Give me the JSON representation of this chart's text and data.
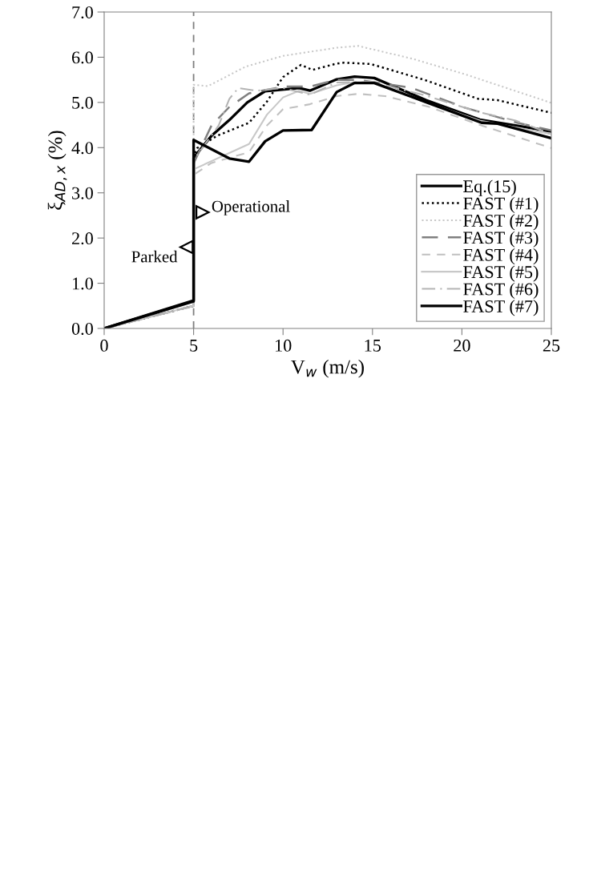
{
  "chart_data": {
    "type": "line",
    "xlabel": "V$_{w}$ (m/s)",
    "ylabel": "ξ$_{AD,x}$ (%)",
    "xlim": [
      0,
      25
    ],
    "xticks": [
      0,
      5,
      10,
      15,
      20,
      25
    ],
    "ylim": [
      0,
      7
    ],
    "yticks": [
      {
        "value": 0,
        "label": "0.0"
      },
      {
        "value": 1,
        "label": "1.0"
      },
      {
        "value": 2,
        "label": "2.0"
      },
      {
        "value": 3,
        "label": "3.0"
      },
      {
        "value": 4,
        "label": "4.0"
      },
      {
        "value": 5,
        "label": "5.0"
      },
      {
        "value": 6,
        "label": "6.0"
      },
      {
        "value": 7,
        "label": "7.0"
      }
    ],
    "grid": false,
    "legend": "bottom right",
    "marker": "none",
    "ref_lines": [
      {
        "axis": "x",
        "value": 5,
        "color": "#808080",
        "line_style": "dashed"
      }
    ],
    "annotations": [
      {
        "text": "Parked",
        "x": 4.6,
        "y": 1.8
      },
      {
        "text": "Operational",
        "x": 5.5,
        "y": 2.57
      }
    ],
    "series": [
      {
        "name": "Eq.(15)",
        "color": "#000000",
        "line_style": "solid",
        "x": [
          0,
          5,
          5,
          6,
          7,
          8,
          9,
          10.9,
          11.5,
          13,
          14,
          15.1,
          18,
          21,
          25
        ],
        "values": [
          0,
          0.62,
          3.78,
          4.26,
          4.61,
          5.0,
          5.25,
          5.32,
          5.26,
          5.51,
          5.57,
          5.54,
          5.05,
          4.62,
          4.36
        ]
      },
      {
        "name": "FAST (#1)",
        "color": "#000000",
        "line_style": "dotted",
        "x": [
          0,
          5,
          5,
          5.2,
          6.3,
          8.1,
          9.1,
          10,
          11,
          11.65,
          13,
          13.4,
          14.9,
          17.9,
          20.9,
          22,
          25
        ],
        "values": [
          0,
          0.5,
          3.8,
          3.99,
          4.26,
          4.55,
          5.02,
          5.56,
          5.83,
          5.72,
          5.86,
          5.88,
          5.85,
          5.5,
          5.08,
          5.05,
          4.77
        ]
      },
      {
        "name": "FAST (#2)",
        "color": "#c8c8c8",
        "line_style": "dotted",
        "x": [
          0,
          5,
          5,
          5.8,
          7.9,
          10,
          13,
          14.2,
          17.2,
          20.2,
          25
        ],
        "values": [
          0,
          0.5,
          5.39,
          5.36,
          5.79,
          6.03,
          6.21,
          6.25,
          5.97,
          5.62,
          4.99
        ]
      },
      {
        "name": "FAST (#3)",
        "color": "#808080",
        "line_style": "longdash",
        "x": [
          0,
          5,
          5,
          6,
          7,
          8.1,
          10,
          11.5,
          13,
          14.2,
          17.2,
          20.2,
          23.1,
          25
        ],
        "values": [
          0,
          0.5,
          3.65,
          4.49,
          4.9,
          5.2,
          5.35,
          5.35,
          5.5,
          5.5,
          5.32,
          4.88,
          4.55,
          4.38
        ]
      },
      {
        "name": "FAST (#4)",
        "color": "#c0c0c0",
        "line_style": "dashed",
        "x": [
          0,
          5,
          5,
          6,
          8.1,
          9.1,
          10,
          11.5,
          13,
          14.2,
          15.7,
          18.1,
          21.1,
          25
        ],
        "values": [
          0,
          0.5,
          3.4,
          3.66,
          3.9,
          4.49,
          4.85,
          4.96,
          5.14,
          5.19,
          5.14,
          4.91,
          4.49,
          3.99
        ]
      },
      {
        "name": "FAST (#5)",
        "color": "#c8c8c8",
        "line_style": "solid",
        "x": [
          0,
          5,
          5,
          8.1,
          9.1,
          10,
          10.9,
          11.5,
          13,
          14,
          15,
          18,
          21,
          25
        ],
        "values": [
          0,
          0.5,
          3.52,
          4.08,
          4.73,
          5.11,
          5.26,
          5.19,
          5.38,
          5.45,
          5.45,
          5.0,
          4.6,
          4.3
        ]
      },
      {
        "name": "FAST (#6)",
        "color": "#b4b4b4",
        "line_style": "dashdot",
        "x": [
          0,
          5,
          5,
          6.4,
          7,
          7.5,
          8.5,
          10,
          11.5,
          13,
          14,
          15,
          18,
          21,
          23,
          25
        ],
        "values": [
          0,
          0.5,
          3.73,
          4.49,
          5.08,
          5.32,
          5.26,
          5.32,
          5.17,
          5.44,
          5.45,
          5.45,
          5.15,
          4.78,
          4.6,
          4.3
        ]
      },
      {
        "name": "FAST (#7)",
        "color": "#000000",
        "line_style": "solid",
        "x": [
          0,
          5,
          5,
          7,
          8.1,
          9,
          10,
          11.6,
          13,
          14,
          15.1,
          18.1,
          21.1,
          22,
          25
        ],
        "values": [
          0,
          0.6,
          4.17,
          3.76,
          3.69,
          4.14,
          4.38,
          4.39,
          5.23,
          5.43,
          5.43,
          4.99,
          4.55,
          4.53,
          4.21
        ]
      }
    ]
  }
}
